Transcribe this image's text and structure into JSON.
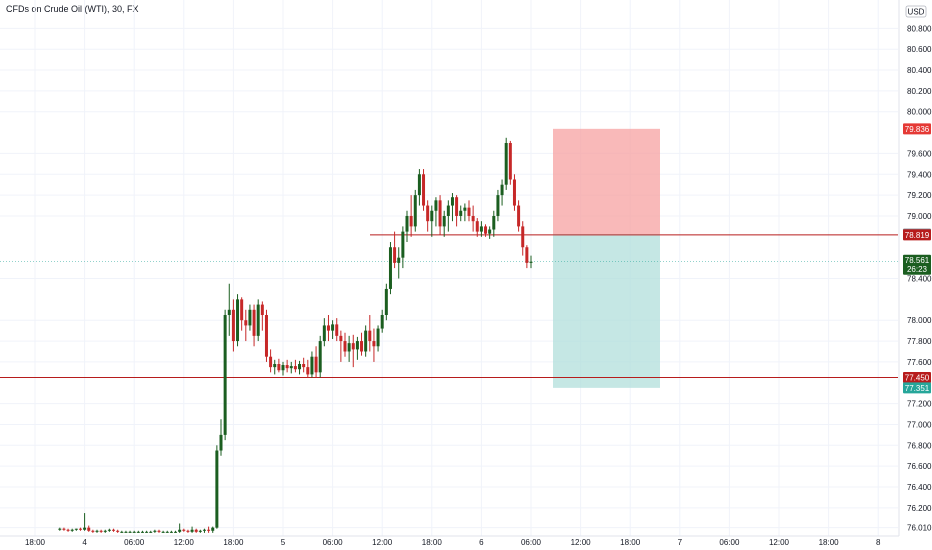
{
  "chart_data": {
    "type": "candlestick",
    "title": "CFDs on Crude Oil (WTI), 30, FX",
    "currency": "USD",
    "ylim": [
      75.93,
      80.88
    ],
    "y_ticks": [
      "80.800",
      "80.600",
      "80.400",
      "80.200",
      "80.000",
      "79.600",
      "79.400",
      "79.200",
      "79.000",
      "78.400",
      "78.000",
      "77.800",
      "77.600",
      "77.200",
      "77.000",
      "76.800",
      "76.600",
      "76.400",
      "76.200",
      "76.010"
    ],
    "y_tick_values": [
      80.8,
      80.6,
      80.4,
      80.2,
      80.0,
      79.6,
      79.4,
      79.2,
      79.0,
      78.4,
      78.0,
      77.8,
      77.6,
      77.2,
      77.0,
      76.8,
      76.6,
      76.4,
      76.2,
      76.01
    ],
    "x_ticks": [
      "18:00",
      "4",
      "06:00",
      "12:00",
      "18:00",
      "5",
      "06:00",
      "12:00",
      "18:00",
      "6",
      "06:00",
      "12:00",
      "18:00",
      "7",
      "06:00",
      "12:00",
      "18:00",
      "8"
    ],
    "x_tick_index": [
      0,
      1,
      2,
      3,
      4,
      5,
      6,
      7,
      8,
      9,
      10,
      11,
      12,
      13,
      14,
      15,
      16,
      17
    ],
    "levels": [
      {
        "name": "resistance",
        "value": 78.819,
        "label": "78.819",
        "color": "#b71c1c"
      },
      {
        "name": "support",
        "value": 77.45,
        "label": "77.450",
        "color": "#b71c1c"
      }
    ],
    "position": {
      "entry": 78.826,
      "entry_label": "78.826",
      "stop": 79.836,
      "stop_label": "79.836",
      "target": 77.351,
      "target_label": "77.351",
      "stop_color": "#f7a1a1",
      "target_color": "#b2dfdb"
    },
    "last_price": {
      "value": 78.561,
      "label": "78.561",
      "countdown": "26:23",
      "color": "#1b5e20"
    },
    "colors": {
      "up": "#1b5e20",
      "down": "#c62828",
      "grid": "#f0f3fa"
    },
    "candle_origin_slot": 6,
    "candles": [
      [
        75.99,
        76.01,
        75.98,
        76.0
      ],
      [
        76.0,
        76.01,
        75.98,
        75.99
      ],
      [
        75.99,
        76.0,
        75.97,
        75.98
      ],
      [
        75.98,
        76.0,
        75.97,
        75.99
      ],
      [
        75.99,
        76.0,
        75.98,
        76.0
      ],
      [
        76.0,
        76.01,
        75.98,
        75.99
      ],
      [
        75.99,
        76.15,
        75.98,
        76.01
      ],
      [
        76.01,
        76.03,
        75.97,
        75.98
      ],
      [
        75.98,
        75.99,
        75.96,
        75.97
      ],
      [
        75.97,
        75.99,
        75.96,
        75.98
      ],
      [
        75.98,
        75.99,
        75.96,
        75.97
      ],
      [
        75.97,
        75.99,
        75.96,
        75.98
      ],
      [
        75.98,
        76.0,
        75.97,
        75.99
      ],
      [
        75.99,
        76.0,
        75.97,
        75.98
      ],
      [
        75.98,
        75.99,
        75.96,
        75.97
      ],
      [
        75.97,
        75.98,
        75.96,
        75.97
      ],
      [
        75.97,
        75.98,
        75.96,
        75.97
      ],
      [
        75.97,
        75.98,
        75.96,
        75.97
      ],
      [
        75.97,
        75.98,
        75.96,
        75.97
      ],
      [
        75.97,
        75.98,
        75.96,
        75.97
      ],
      [
        75.97,
        75.98,
        75.96,
        75.97
      ],
      [
        75.97,
        75.98,
        75.96,
        75.97
      ],
      [
        75.97,
        75.98,
        75.96,
        75.97
      ],
      [
        75.97,
        75.99,
        75.96,
        75.98
      ],
      [
        75.98,
        75.99,
        75.96,
        75.97
      ],
      [
        75.97,
        75.98,
        75.96,
        75.97
      ],
      [
        75.97,
        75.98,
        75.96,
        75.97
      ],
      [
        75.97,
        75.98,
        75.96,
        75.97
      ],
      [
        75.97,
        75.98,
        75.96,
        75.97
      ],
      [
        75.97,
        76.05,
        75.96,
        75.99
      ],
      [
        75.99,
        76.0,
        75.97,
        75.98
      ],
      [
        75.98,
        75.99,
        75.96,
        75.97
      ],
      [
        75.97,
        76.02,
        75.96,
        75.99
      ],
      [
        75.99,
        76.0,
        75.96,
        75.97
      ],
      [
        75.97,
        75.99,
        75.96,
        75.98
      ],
      [
        75.98,
        76.0,
        75.96,
        75.99
      ],
      [
        75.99,
        76.02,
        75.96,
        75.98
      ],
      [
        75.98,
        76.02,
        75.96,
        76.01
      ],
      [
        76.01,
        76.8,
        76.0,
        76.75
      ],
      [
        76.75,
        77.05,
        76.7,
        76.9
      ],
      [
        76.9,
        78.1,
        76.85,
        78.05
      ],
      [
        78.05,
        78.35,
        77.85,
        78.1
      ],
      [
        78.1,
        78.2,
        77.7,
        77.8
      ],
      [
        77.8,
        78.25,
        77.75,
        78.2
      ],
      [
        78.2,
        78.22,
        77.9,
        78.0
      ],
      [
        78.0,
        78.1,
        77.8,
        77.95
      ],
      [
        77.95,
        78.15,
        77.9,
        78.1
      ],
      [
        78.1,
        78.15,
        77.75,
        77.85
      ],
      [
        77.85,
        78.2,
        77.8,
        78.15
      ],
      [
        78.15,
        78.18,
        77.9,
        78.05
      ],
      [
        78.05,
        78.1,
        77.6,
        77.65
      ],
      [
        77.65,
        77.72,
        77.5,
        77.55
      ],
      [
        77.55,
        77.62,
        77.48,
        77.58
      ],
      [
        77.58,
        77.63,
        77.5,
        77.52
      ],
      [
        77.52,
        77.6,
        77.47,
        77.57
      ],
      [
        77.57,
        77.62,
        77.5,
        77.54
      ],
      [
        77.54,
        77.6,
        77.49,
        77.56
      ],
      [
        77.56,
        77.62,
        77.5,
        77.53
      ],
      [
        77.53,
        77.61,
        77.48,
        77.58
      ],
      [
        77.58,
        77.64,
        77.5,
        77.55
      ],
      [
        77.55,
        77.62,
        77.45,
        77.48
      ],
      [
        77.48,
        77.7,
        77.45,
        77.65
      ],
      [
        77.65,
        77.75,
        77.45,
        77.5
      ],
      [
        77.5,
        77.85,
        77.45,
        77.8
      ],
      [
        77.8,
        78.02,
        77.75,
        77.95
      ],
      [
        77.95,
        78.05,
        77.8,
        77.9
      ],
      [
        77.9,
        78.0,
        77.82,
        77.96
      ],
      [
        77.96,
        78.02,
        77.8,
        77.85
      ],
      [
        77.85,
        77.9,
        77.6,
        77.8
      ],
      [
        77.8,
        77.88,
        77.65,
        77.7
      ],
      [
        77.7,
        77.85,
        77.6,
        77.78
      ],
      [
        77.78,
        77.86,
        77.55,
        77.72
      ],
      [
        77.72,
        77.84,
        77.62,
        77.8
      ],
      [
        77.8,
        77.88,
        77.66,
        77.7
      ],
      [
        77.7,
        77.95,
        77.65,
        77.9
      ],
      [
        77.9,
        78.05,
        77.7,
        77.8
      ],
      [
        77.8,
        77.92,
        77.6,
        77.75
      ],
      [
        77.75,
        77.95,
        77.7,
        77.92
      ],
      [
        77.92,
        78.1,
        77.88,
        78.05
      ],
      [
        78.05,
        78.35,
        78.0,
        78.3
      ],
      [
        78.3,
        78.75,
        78.25,
        78.7
      ],
      [
        78.7,
        78.85,
        78.5,
        78.55
      ],
      [
        78.55,
        78.7,
        78.4,
        78.6
      ],
      [
        78.6,
        78.9,
        78.5,
        78.85
      ],
      [
        78.85,
        79.05,
        78.75,
        79.0
      ],
      [
        79.0,
        79.2,
        78.8,
        78.9
      ],
      [
        78.9,
        79.25,
        78.85,
        79.2
      ],
      [
        79.2,
        79.45,
        79.1,
        79.4
      ],
      [
        79.4,
        79.45,
        79.05,
        79.1
      ],
      [
        79.1,
        79.15,
        78.85,
        78.95
      ],
      [
        78.95,
        79.1,
        78.8,
        79.05
      ],
      [
        79.05,
        79.18,
        78.9,
        79.15
      ],
      [
        79.15,
        79.2,
        78.82,
        78.9
      ],
      [
        78.9,
        79.05,
        78.8,
        79.0
      ],
      [
        79.0,
        79.15,
        78.85,
        79.1
      ],
      [
        79.1,
        79.22,
        78.95,
        79.18
      ],
      [
        79.18,
        79.2,
        78.9,
        79.0
      ],
      [
        79.0,
        79.1,
        78.95,
        79.05
      ],
      [
        79.05,
        79.12,
        78.95,
        79.08
      ],
      [
        79.08,
        79.15,
        78.95,
        79.0
      ],
      [
        79.0,
        79.1,
        78.85,
        78.95
      ],
      [
        78.95,
        78.98,
        78.8,
        78.85
      ],
      [
        78.85,
        78.95,
        78.8,
        78.9
      ],
      [
        78.9,
        78.92,
        78.8,
        78.83
      ],
      [
        78.83,
        78.9,
        78.78,
        78.87
      ],
      [
        78.87,
        79.05,
        78.8,
        79.0
      ],
      [
        79.0,
        79.25,
        78.95,
        79.2
      ],
      [
        79.2,
        79.35,
        79.1,
        79.3
      ],
      [
        79.3,
        79.75,
        79.25,
        79.7
      ],
      [
        79.7,
        79.72,
        79.3,
        79.35
      ],
      [
        79.35,
        79.4,
        79.05,
        79.1
      ],
      [
        79.1,
        79.15,
        78.85,
        78.9
      ],
      [
        78.9,
        78.95,
        78.62,
        78.7
      ],
      [
        78.7,
        78.72,
        78.5,
        78.55
      ],
      [
        78.55,
        78.62,
        78.5,
        78.561
      ]
    ]
  }
}
